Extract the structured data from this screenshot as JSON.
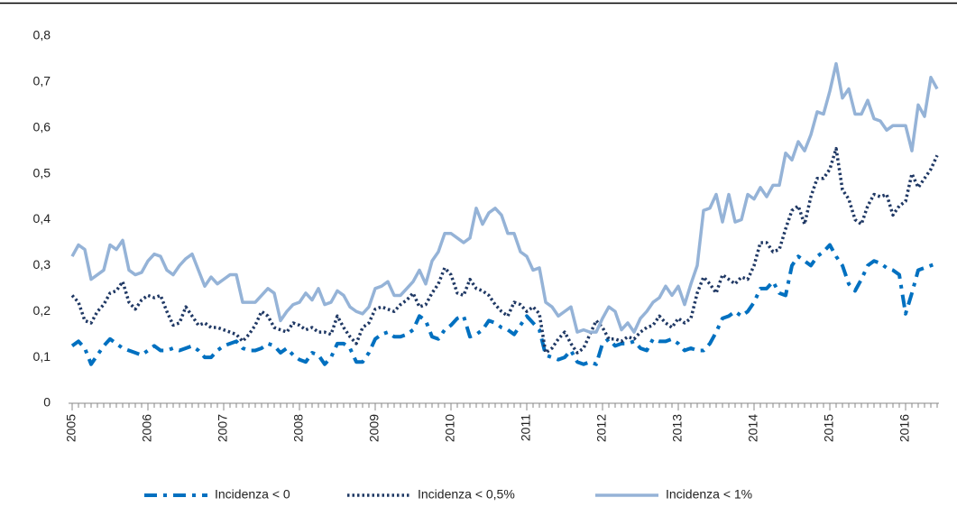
{
  "chart_data": {
    "type": "line",
    "categories": [
      "2005",
      null,
      null,
      null,
      null,
      null,
      null,
      null,
      null,
      null,
      null,
      null,
      "2006",
      null,
      null,
      null,
      null,
      null,
      null,
      null,
      null,
      null,
      null,
      null,
      "2007",
      null,
      null,
      null,
      null,
      null,
      null,
      null,
      null,
      null,
      null,
      null,
      "2008",
      null,
      null,
      null,
      null,
      null,
      null,
      null,
      null,
      null,
      null,
      null,
      "2009",
      null,
      null,
      null,
      null,
      null,
      null,
      null,
      null,
      null,
      null,
      null,
      "2010",
      null,
      null,
      null,
      null,
      null,
      null,
      null,
      null,
      null,
      null,
      null,
      "2011",
      null,
      null,
      null,
      null,
      null,
      null,
      null,
      null,
      null,
      null,
      null,
      "2012",
      null,
      null,
      null,
      null,
      null,
      null,
      null,
      null,
      null,
      null,
      null,
      "2013",
      null,
      null,
      null,
      null,
      null,
      null,
      null,
      null,
      null,
      null,
      null,
      "2014",
      null,
      null,
      null,
      null,
      null,
      null,
      null,
      null,
      null,
      null,
      null,
      "2015",
      null,
      null,
      null,
      null,
      null,
      null,
      null,
      null,
      null,
      null,
      null,
      "2016",
      null,
      null,
      null,
      null,
      null
    ],
    "series": [
      {
        "name": "Incidenza < 0",
        "color": "#0070c0",
        "values": [
          0.125,
          0.135,
          0.12,
          0.085,
          0.105,
          0.125,
          0.14,
          0.13,
          0.12,
          0.115,
          0.11,
          0.105,
          0.115,
          0.125,
          0.115,
          0.115,
          0.12,
          0.115,
          0.12,
          0.125,
          0.115,
          0.1,
          0.1,
          0.115,
          0.125,
          0.13,
          0.135,
          0.12,
          0.115,
          0.115,
          0.12,
          0.13,
          0.125,
          0.11,
          0.12,
          0.105,
          0.095,
          0.09,
          0.11,
          0.105,
          0.085,
          0.1,
          0.13,
          0.13,
          0.12,
          0.09,
          0.09,
          0.11,
          0.14,
          0.15,
          0.155,
          0.145,
          0.145,
          0.15,
          0.16,
          0.19,
          0.18,
          0.145,
          0.14,
          0.16,
          0.17,
          0.185,
          0.19,
          0.145,
          0.15,
          0.16,
          0.18,
          0.175,
          0.165,
          0.16,
          0.15,
          0.17,
          0.19,
          0.175,
          0.16,
          0.105,
          0.1,
          0.095,
          0.1,
          0.115,
          0.09,
          0.085,
          0.09,
          0.085,
          0.13,
          0.14,
          0.125,
          0.13,
          0.13,
          0.135,
          0.12,
          0.115,
          0.14,
          0.135,
          0.135,
          0.14,
          0.13,
          0.115,
          0.12,
          0.115,
          0.115,
          0.13,
          0.155,
          0.185,
          0.19,
          0.2,
          0.19,
          0.2,
          0.22,
          0.25,
          0.25,
          0.265,
          0.24,
          0.235,
          0.3,
          0.32,
          0.31,
          0.3,
          0.32,
          0.33,
          0.345,
          0.32,
          0.3,
          0.26,
          0.245,
          0.27,
          0.3,
          0.31,
          0.305,
          0.295,
          0.29,
          0.28,
          0.195,
          0.24,
          0.29,
          0.295,
          0.3,
          0.305
        ]
      },
      {
        "name": "Incidenza < 0,5%",
        "color": "#1f3864",
        "values": [
          0.235,
          0.22,
          0.18,
          0.175,
          0.2,
          0.215,
          0.24,
          0.245,
          0.265,
          0.22,
          0.205,
          0.225,
          0.235,
          0.23,
          0.235,
          0.2,
          0.17,
          0.175,
          0.21,
          0.19,
          0.17,
          0.175,
          0.165,
          0.165,
          0.16,
          0.155,
          0.15,
          0.135,
          0.15,
          0.17,
          0.2,
          0.19,
          0.165,
          0.16,
          0.155,
          0.175,
          0.17,
          0.16,
          0.165,
          0.155,
          0.155,
          0.15,
          0.19,
          0.165,
          0.145,
          0.13,
          0.165,
          0.175,
          0.205,
          0.21,
          0.205,
          0.2,
          0.215,
          0.225,
          0.24,
          0.21,
          0.215,
          0.24,
          0.26,
          0.295,
          0.28,
          0.24,
          0.235,
          0.27,
          0.25,
          0.245,
          0.235,
          0.215,
          0.2,
          0.19,
          0.22,
          0.215,
          0.2,
          0.21,
          0.195,
          0.11,
          0.12,
          0.14,
          0.155,
          0.13,
          0.11,
          0.12,
          0.15,
          0.18,
          0.165,
          0.14,
          0.14,
          0.135,
          0.145,
          0.14,
          0.155,
          0.165,
          0.17,
          0.19,
          0.175,
          0.165,
          0.185,
          0.175,
          0.185,
          0.24,
          0.275,
          0.26,
          0.24,
          0.28,
          0.27,
          0.26,
          0.275,
          0.27,
          0.3,
          0.35,
          0.35,
          0.33,
          0.335,
          0.38,
          0.42,
          0.43,
          0.39,
          0.45,
          0.49,
          0.49,
          0.51,
          0.555,
          0.465,
          0.445,
          0.4,
          0.39,
          0.43,
          0.455,
          0.45,
          0.455,
          0.41,
          0.43,
          0.44,
          0.5,
          0.47,
          0.49,
          0.51,
          0.54
        ]
      },
      {
        "name": "Incidenza < 1%",
        "color": "#95b3d7",
        "values": [
          0.32,
          0.345,
          0.335,
          0.27,
          0.28,
          0.29,
          0.345,
          0.335,
          0.355,
          0.29,
          0.28,
          0.285,
          0.31,
          0.325,
          0.32,
          0.29,
          0.28,
          0.3,
          0.315,
          0.325,
          0.29,
          0.255,
          0.275,
          0.26,
          0.27,
          0.28,
          0.28,
          0.22,
          0.22,
          0.22,
          0.235,
          0.25,
          0.24,
          0.18,
          0.2,
          0.215,
          0.22,
          0.24,
          0.225,
          0.25,
          0.215,
          0.22,
          0.245,
          0.235,
          0.21,
          0.2,
          0.195,
          0.21,
          0.25,
          0.255,
          0.265,
          0.235,
          0.235,
          0.25,
          0.265,
          0.29,
          0.26,
          0.31,
          0.33,
          0.37,
          0.37,
          0.36,
          0.35,
          0.36,
          0.425,
          0.39,
          0.415,
          0.425,
          0.41,
          0.37,
          0.37,
          0.33,
          0.32,
          0.29,
          0.295,
          0.22,
          0.21,
          0.19,
          0.2,
          0.21,
          0.155,
          0.16,
          0.155,
          0.155,
          0.185,
          0.21,
          0.2,
          0.16,
          0.175,
          0.155,
          0.185,
          0.2,
          0.22,
          0.23,
          0.255,
          0.235,
          0.255,
          0.215,
          0.26,
          0.3,
          0.42,
          0.425,
          0.455,
          0.395,
          0.455,
          0.395,
          0.4,
          0.455,
          0.445,
          0.47,
          0.45,
          0.475,
          0.475,
          0.545,
          0.53,
          0.57,
          0.55,
          0.585,
          0.635,
          0.63,
          0.68,
          0.74,
          0.665,
          0.685,
          0.63,
          0.63,
          0.66,
          0.62,
          0.615,
          0.595,
          0.605,
          0.605,
          0.605,
          0.55,
          0.65,
          0.625,
          0.71,
          0.685
        ]
      }
    ],
    "ylim": [
      0,
      0.8
    ],
    "yticks": [
      0,
      {
        "value": 0.1,
        "label": "0,1"
      },
      {
        "value": 0.2,
        "label": "0,2"
      },
      {
        "value": 0.3,
        "label": "0,3"
      },
      {
        "value": 0.4,
        "label": "0,4"
      },
      {
        "value": 0.5,
        "label": "0,5"
      },
      {
        "value": 0.6,
        "label": "0,6"
      },
      {
        "value": 0.7,
        "label": "0,7"
      },
      {
        "value": 0.8,
        "label": "0,8"
      }
    ],
    "grid": false,
    "legend": "bottom"
  }
}
